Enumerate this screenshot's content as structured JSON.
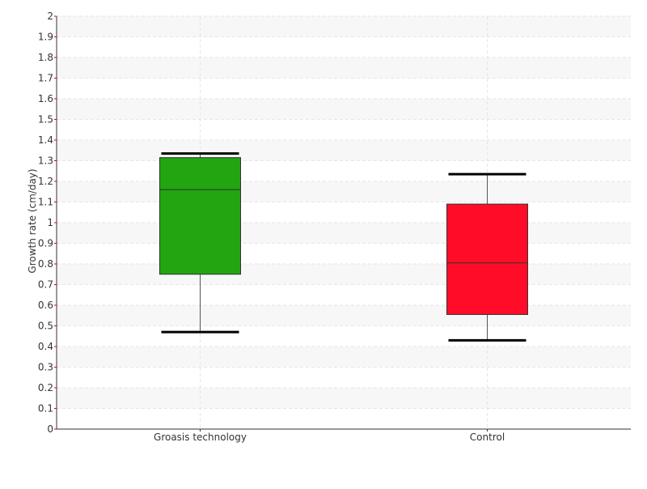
{
  "chart_data": {
    "type": "box",
    "title": "",
    "xlabel": "",
    "ylabel": "Growth rate (cm/day)",
    "ylim": [
      0,
      2
    ],
    "y_ticks": [
      "0",
      "0.1",
      "0.2",
      "0.3",
      "0.4",
      "0.5",
      "0.6",
      "0.7",
      "0.8",
      "0.9",
      "1",
      "1.1",
      "1.2",
      "1.3",
      "1.4",
      "1.5",
      "1.6",
      "1.7",
      "1.8",
      "1.9",
      "2"
    ],
    "grid": true,
    "categories": [
      "Groasis technology",
      "Control"
    ],
    "boxes": [
      {
        "category": "Groasis technology",
        "whisker_low": 0.47,
        "q1": 0.75,
        "median": 1.16,
        "q3": 1.315,
        "whisker_high": 1.335,
        "color": "#22a511"
      },
      {
        "category": "Control",
        "whisker_low": 0.43,
        "q1": 0.555,
        "median": 0.805,
        "q3": 1.09,
        "whisker_high": 1.235,
        "color": "#ff0d28"
      }
    ]
  }
}
